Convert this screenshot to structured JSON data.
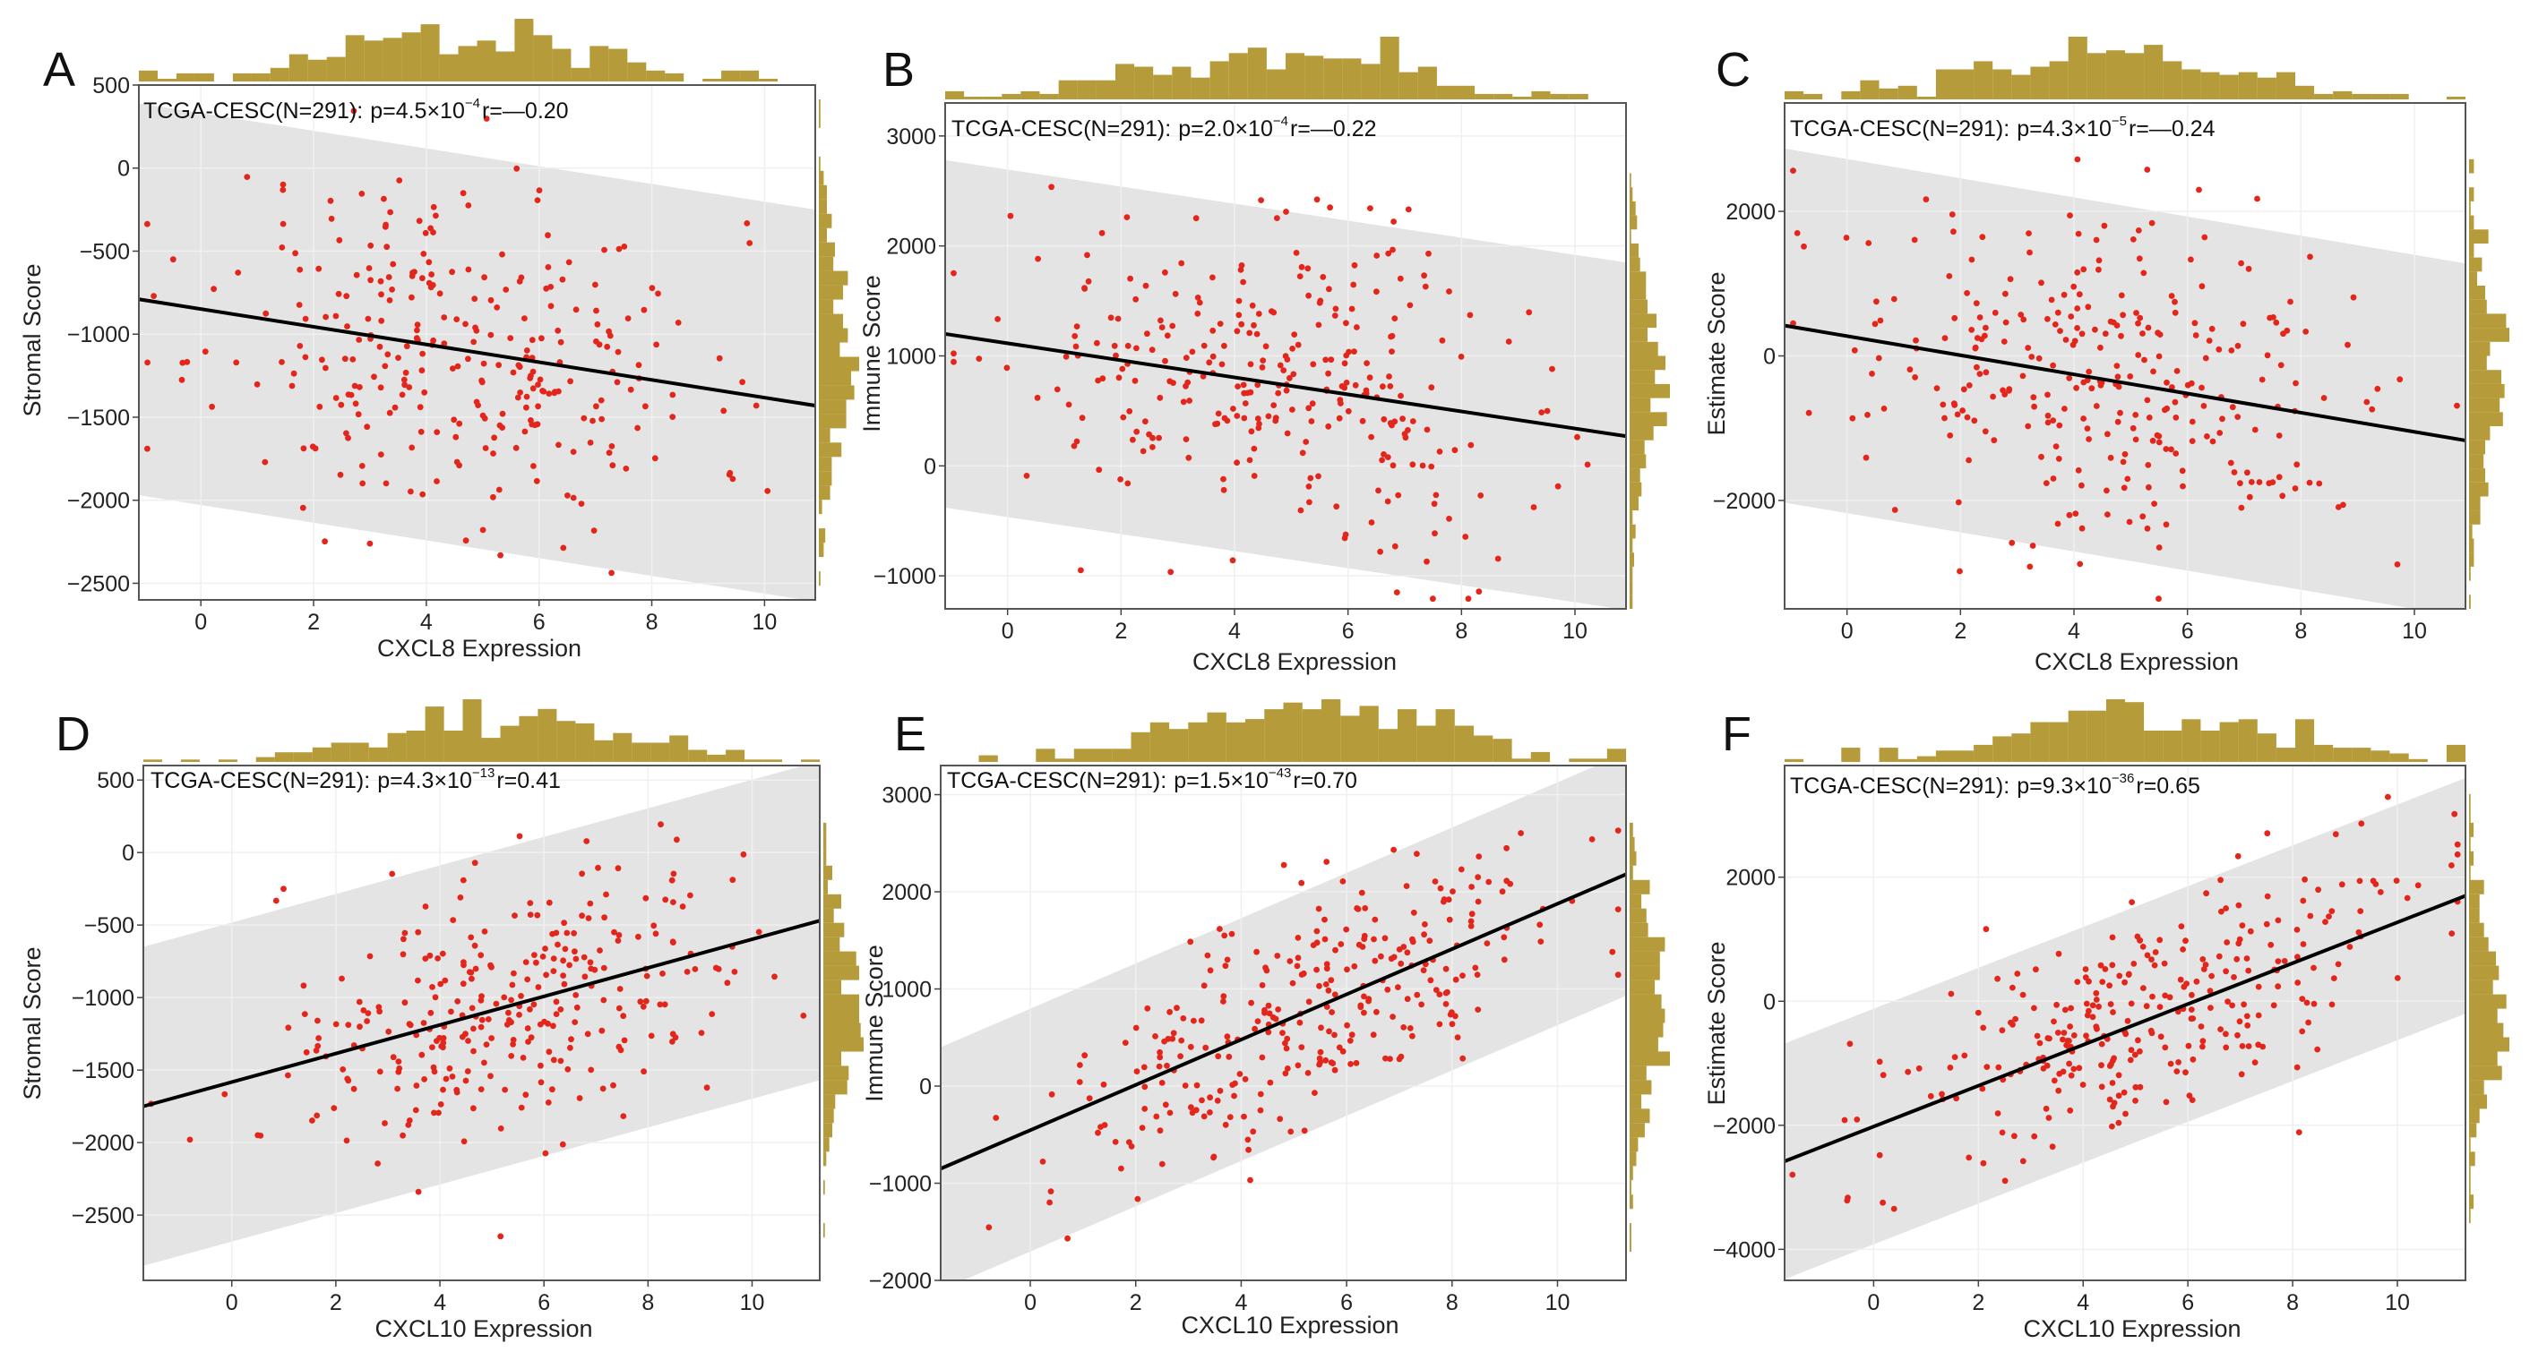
{
  "chart_data": [
    {
      "panel": "A",
      "type": "scatter",
      "annotation": {
        "cohort": "TCGA-CESC(N=291):",
        "p_base": "p=4.5×10",
        "p_exp": "−4",
        "r": "r=—0.20"
      },
      "xlabel": "CXCL8 Expression",
      "ylabel": "Stromal Score",
      "xlim": [
        -1.1,
        10.9
      ],
      "ylim": [
        -2600,
        500
      ],
      "xticks": [
        {
          "v": 0,
          "label": "0"
        },
        {
          "v": 2,
          "label": "2"
        },
        {
          "v": 4,
          "label": "4"
        },
        {
          "v": 6,
          "label": "6"
        },
        {
          "v": 8,
          "label": "8"
        },
        {
          "v": 10,
          "label": "10"
        }
      ],
      "yticks": [
        {
          "v": 500,
          "label": "500"
        },
        {
          "v": 0,
          "label": "0"
        },
        {
          "v": -500,
          "label": "−500"
        },
        {
          "v": -1000,
          "label": "−1000"
        },
        {
          "v": -1500,
          "label": "−1500"
        },
        {
          "v": -2000,
          "label": "−2000"
        },
        {
          "v": -2500,
          "label": "−2500"
        }
      ],
      "fit": {
        "x1": -1.1,
        "y1": -790,
        "x2": 10.9,
        "y2": -1430
      },
      "band_halfwidth": 1180,
      "sim": {
        "n": 291,
        "seed": 11,
        "x_mean": 4.6,
        "x_sd": 2.2,
        "y_sd": 520
      }
    },
    {
      "panel": "B",
      "type": "scatter",
      "annotation": {
        "cohort": "TCGA-CESC(N=291):",
        "p_base": "p=2.0×10",
        "p_exp": "−4",
        "r": "r=—0.22"
      },
      "xlabel": "CXCL8 Expression",
      "ylabel": "Immune Score",
      "xlim": [
        -1.1,
        10.9
      ],
      "ylim": [
        -1300,
        3300
      ],
      "xticks": [
        {
          "v": 0,
          "label": "0"
        },
        {
          "v": 2,
          "label": "2"
        },
        {
          "v": 4,
          "label": "4"
        },
        {
          "v": 6,
          "label": "6"
        },
        {
          "v": 8,
          "label": "8"
        },
        {
          "v": 10,
          "label": "10"
        }
      ],
      "yticks": [
        {
          "v": 3000,
          "label": "3000"
        },
        {
          "v": 2000,
          "label": "2000"
        },
        {
          "v": 1000,
          "label": "1000"
        },
        {
          "v": 0,
          "label": "0"
        },
        {
          "v": -1000,
          "label": "−1000"
        }
      ],
      "fit": {
        "x1": -1.1,
        "y1": 1200,
        "x2": 10.9,
        "y2": 270
      },
      "band_halfwidth": 1580,
      "sim": {
        "n": 291,
        "seed": 22,
        "x_mean": 4.6,
        "x_sd": 2.2,
        "y_sd": 700
      }
    },
    {
      "panel": "C",
      "type": "scatter",
      "annotation": {
        "cohort": "TCGA-CESC(N=291):",
        "p_base": "p=4.3×10",
        "p_exp": "−5",
        "r": "r=—0.24"
      },
      "xlabel": "CXCL8 Expression",
      "ylabel": "Estimate Score",
      "xlim": [
        -1.1,
        10.9
      ],
      "ylim": [
        -3500,
        3500
      ],
      "xticks": [
        {
          "v": 0,
          "label": "0"
        },
        {
          "v": 2,
          "label": "2"
        },
        {
          "v": 4,
          "label": "4"
        },
        {
          "v": 6,
          "label": "6"
        },
        {
          "v": 8,
          "label": "8"
        },
        {
          "v": 10,
          "label": "10"
        }
      ],
      "yticks": [
        {
          "v": 2000,
          "label": "2000"
        },
        {
          "v": 0,
          "label": "0"
        },
        {
          "v": -2000,
          "label": "−2000"
        }
      ],
      "fit": {
        "x1": -1.1,
        "y1": 420,
        "x2": 10.9,
        "y2": -1170
      },
      "band_halfwidth": 2450,
      "sim": {
        "n": 291,
        "seed": 33,
        "x_mean": 4.6,
        "x_sd": 2.2,
        "y_sd": 1100
      }
    },
    {
      "panel": "D",
      "type": "scatter",
      "annotation": {
        "cohort": "TCGA-CESC(N=291):",
        "p_base": "p=4.3×10",
        "p_exp": "−13",
        "r": "r=0.41"
      },
      "xlabel": "CXCL10 Expression",
      "ylabel": "Stromal Score",
      "xlim": [
        -1.7,
        11.3
      ],
      "ylim": [
        -2950,
        600
      ],
      "xticks": [
        {
          "v": 0,
          "label": "0"
        },
        {
          "v": 2,
          "label": "2"
        },
        {
          "v": 4,
          "label": "4"
        },
        {
          "v": 6,
          "label": "6"
        },
        {
          "v": 8,
          "label": "8"
        },
        {
          "v": 10,
          "label": "10"
        }
      ],
      "yticks": [
        {
          "v": 500,
          "label": "500"
        },
        {
          "v": 0,
          "label": "0"
        },
        {
          "v": -500,
          "label": "−500"
        },
        {
          "v": -1000,
          "label": "−1000"
        },
        {
          "v": -1500,
          "label": "−1500"
        },
        {
          "v": -2000,
          "label": "−2000"
        },
        {
          "v": -2500,
          "label": "−2500"
        }
      ],
      "fit": {
        "x1": -1.7,
        "y1": -1750,
        "x2": 11.3,
        "y2": -470
      },
      "band_halfwidth": 1100,
      "sim": {
        "n": 291,
        "seed": 44,
        "x_mean": 5.3,
        "x_sd": 2.4,
        "y_sd": 480
      }
    },
    {
      "panel": "E",
      "type": "scatter",
      "annotation": {
        "cohort": "TCGA-CESC(N=291):",
        "p_base": "p=1.5×10",
        "p_exp": "−43",
        "r": "r=0.70"
      },
      "xlabel": "CXCL10 Expression",
      "ylabel": "Immune Score",
      "xlim": [
        -1.7,
        11.3
      ],
      "ylim": [
        -2000,
        3300
      ],
      "xticks": [
        {
          "v": 0,
          "label": "0"
        },
        {
          "v": 2,
          "label": "2"
        },
        {
          "v": 4,
          "label": "4"
        },
        {
          "v": 6,
          "label": "6"
        },
        {
          "v": 8,
          "label": "8"
        },
        {
          "v": 10,
          "label": "10"
        }
      ],
      "yticks": [
        {
          "v": 3000,
          "label": "3000"
        },
        {
          "v": 2000,
          "label": "2000"
        },
        {
          "v": 1000,
          "label": "1000"
        },
        {
          "v": 0,
          "label": "0"
        },
        {
          "v": -1000,
          "label": "−1000"
        },
        {
          "v": -2000,
          "label": "−2000"
        }
      ],
      "fit": {
        "x1": -1.7,
        "y1": -850,
        "x2": 11.3,
        "y2": 2180
      },
      "band_halfwidth": 1250,
      "sim": {
        "n": 291,
        "seed": 55,
        "x_mean": 5.3,
        "x_sd": 2.4,
        "y_sd": 560
      }
    },
    {
      "panel": "F",
      "type": "scatter",
      "annotation": {
        "cohort": "TCGA-CESC(N=291):",
        "p_base": "p=9.3×10",
        "p_exp": "−36",
        "r": "r=0.65"
      },
      "xlabel": "CXCL10 Expression",
      "ylabel": "Estimate Score",
      "xlim": [
        -1.7,
        11.3
      ],
      "ylim": [
        -4500,
        3800
      ],
      "xticks": [
        {
          "v": 0,
          "label": "0"
        },
        {
          "v": 2,
          "label": "2"
        },
        {
          "v": 4,
          "label": "4"
        },
        {
          "v": 6,
          "label": "6"
        },
        {
          "v": 8,
          "label": "8"
        },
        {
          "v": 10,
          "label": "10"
        }
      ],
      "yticks": [
        {
          "v": 2000,
          "label": "2000"
        },
        {
          "v": 0,
          "label": "0"
        },
        {
          "v": -2000,
          "label": "−2000"
        },
        {
          "v": -4000,
          "label": "−4000"
        }
      ],
      "fit": {
        "x1": -1.7,
        "y1": -2580,
        "x2": 11.3,
        "y2": 1700
      },
      "band_halfwidth": 1900,
      "sim": {
        "n": 291,
        "seed": 66,
        "x_mean": 5.3,
        "x_sd": 2.4,
        "y_sd": 860
      }
    }
  ],
  "colors": {
    "point": "#e3261c",
    "histogram": "#b59b3a",
    "band": "#e4e4e4",
    "fit_line": "#000000"
  }
}
